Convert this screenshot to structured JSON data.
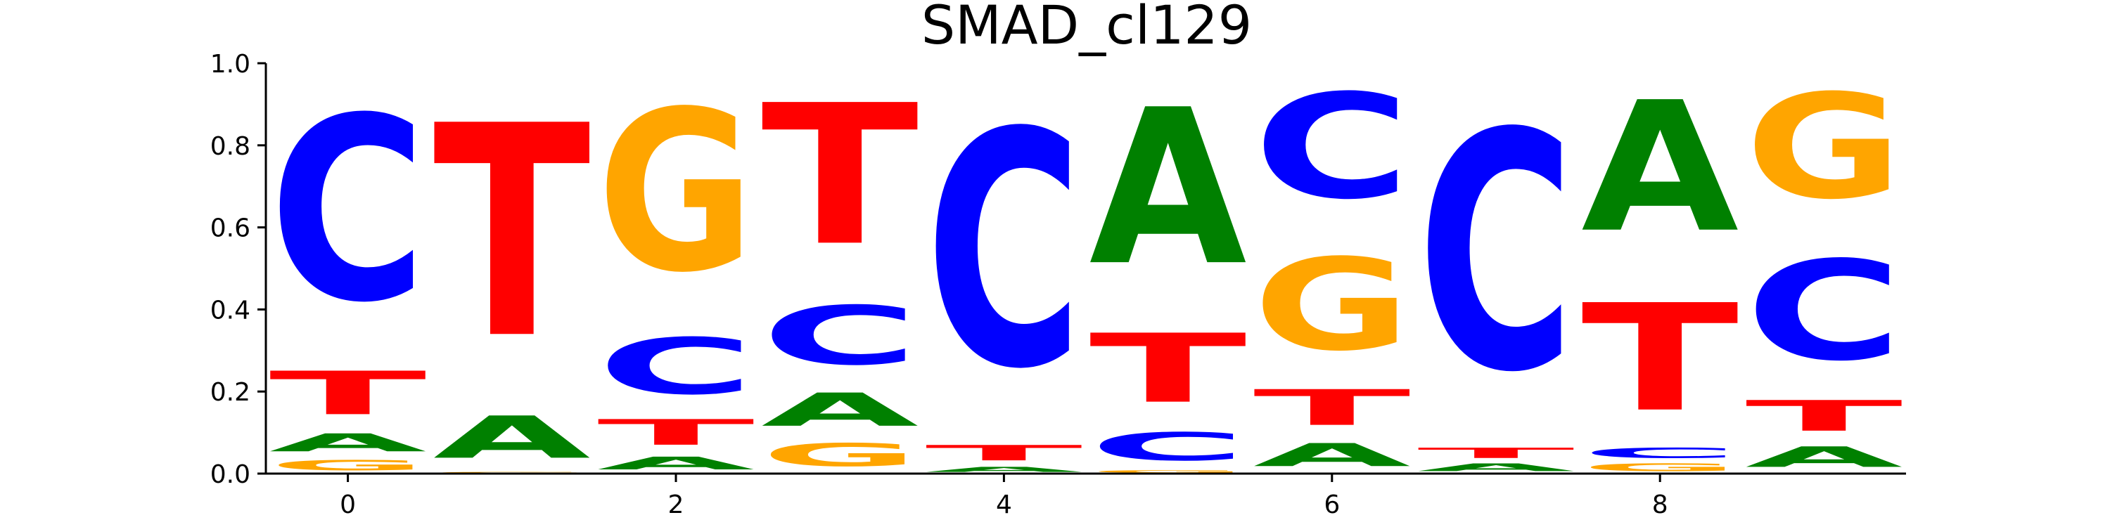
{
  "chart_data": {
    "type": "sequence-logo",
    "title": "SMAD_cl129",
    "xlabel": "",
    "ylabel": "",
    "ylim": [
      0,
      1.0
    ],
    "y_ticks": [
      "0.0",
      "0.2",
      "0.4",
      "0.6",
      "0.8",
      "1.0"
    ],
    "x_ticks": [
      "0",
      "2",
      "4",
      "6",
      "8"
    ],
    "x_tick_positions": [
      0,
      2,
      4,
      6,
      8
    ],
    "xlim": [
      -0.5,
      9.5
    ],
    "colors": {
      "A": "#008000",
      "C": "#0000ff",
      "G": "#ffa500",
      "T": "#ff0000"
    },
    "positions": [
      {
        "index": 0,
        "stack": [
          {
            "base": "G",
            "value": 0.04
          },
          {
            "base": "A",
            "value": 0.07
          },
          {
            "base": "T",
            "value": 0.17
          },
          {
            "base": "C",
            "value": 0.72
          }
        ]
      },
      {
        "index": 1,
        "stack": [
          {
            "base": "G",
            "value": 0.005
          },
          {
            "base": "A",
            "value": 0.165
          },
          {
            "base": "T",
            "value": 0.83
          }
        ]
      },
      {
        "index": 2,
        "stack": [
          {
            "base": "A",
            "value": 0.05
          },
          {
            "base": "T",
            "value": 0.1
          },
          {
            "base": "C",
            "value": 0.22
          },
          {
            "base": "G",
            "value": 0.63
          }
        ]
      },
      {
        "index": 3,
        "stack": [
          {
            "base": "G",
            "value": 0.09
          },
          {
            "base": "A",
            "value": 0.13
          },
          {
            "base": "C",
            "value": 0.23
          },
          {
            "base": "T",
            "value": 0.55
          }
        ]
      },
      {
        "index": 4,
        "stack": [
          {
            "base": "A",
            "value": 0.02
          },
          {
            "base": "T",
            "value": 0.06
          },
          {
            "base": "C",
            "value": 0.92
          }
        ]
      },
      {
        "index": 5,
        "stack": [
          {
            "base": "G",
            "value": 0.01
          },
          {
            "base": "C",
            "value": 0.11
          },
          {
            "base": "T",
            "value": 0.27
          },
          {
            "base": "A",
            "value": 0.61
          }
        ]
      },
      {
        "index": 6,
        "stack": [
          {
            "base": "A",
            "value": 0.09
          },
          {
            "base": "T",
            "value": 0.14
          },
          {
            "base": "G",
            "value": 0.36
          },
          {
            "base": "C",
            "value": 0.41
          }
        ]
      },
      {
        "index": 7,
        "stack": [
          {
            "base": "A",
            "value": 0.03
          },
          {
            "base": "T",
            "value": 0.04
          },
          {
            "base": "C",
            "value": 0.93
          }
        ]
      },
      {
        "index": 8,
        "stack": [
          {
            "base": "G",
            "value": 0.03
          },
          {
            "base": "C",
            "value": 0.04
          },
          {
            "base": "T",
            "value": 0.42
          },
          {
            "base": "A",
            "value": 0.51
          }
        ]
      },
      {
        "index": 9,
        "stack": [
          {
            "base": "A",
            "value": 0.08
          },
          {
            "base": "T",
            "value": 0.12
          },
          {
            "base": "C",
            "value": 0.39
          },
          {
            "base": "G",
            "value": 0.41
          }
        ]
      }
    ]
  }
}
